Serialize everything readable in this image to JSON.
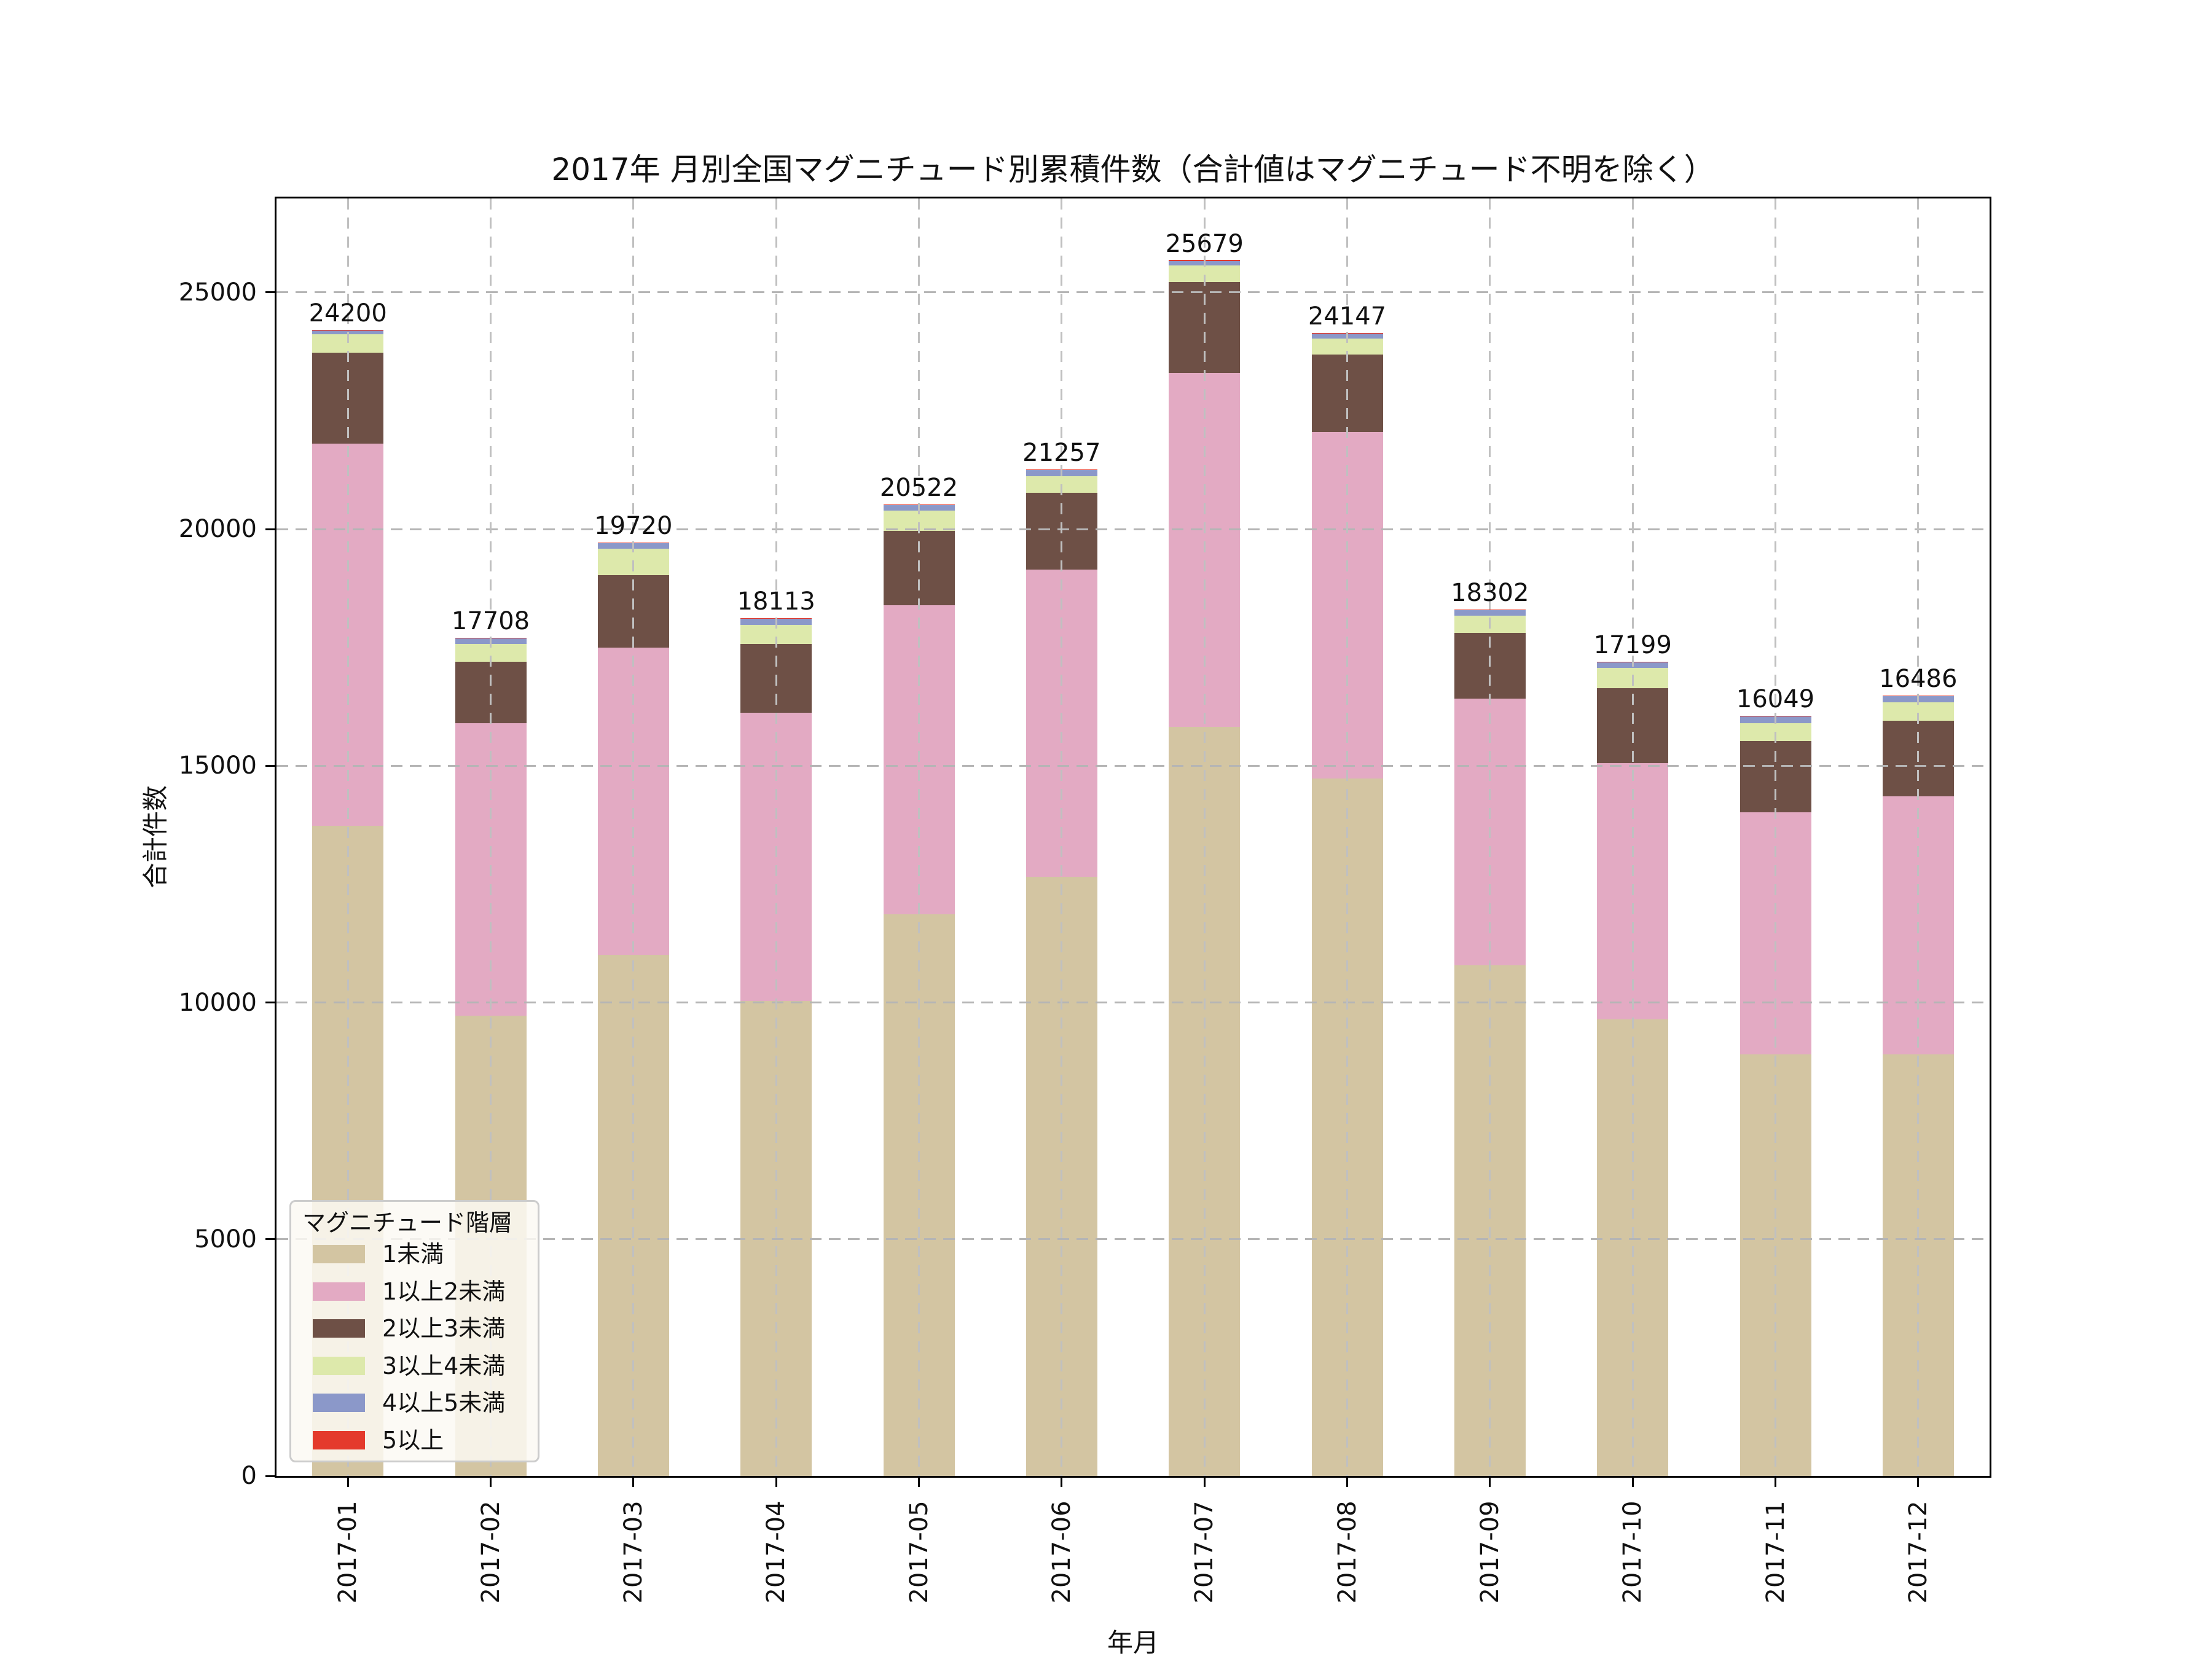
{
  "chart_data": {
    "type": "bar",
    "stacked": true,
    "title": "2017年 月別全国マグニチュード別累積件数（合計値はマグニチュード不明を除く）",
    "xlabel": "年月",
    "ylabel": "合計件数",
    "categories": [
      "2017-01",
      "2017-02",
      "2017-03",
      "2017-04",
      "2017-05",
      "2017-06",
      "2017-07",
      "2017-08",
      "2017-09",
      "2017-10",
      "2017-11",
      "2017-12"
    ],
    "series": [
      {
        "name": "1未満",
        "color": "#d3c5a2",
        "values": [
          13730,
          9720,
          11000,
          10030,
          11860,
          12660,
          15820,
          14730,
          10790,
          9640,
          8900,
          8900
        ]
      },
      {
        "name": "1以上2未満",
        "color": "#e3aac3",
        "values": [
          8070,
          6180,
          6490,
          6090,
          6530,
          6480,
          7475,
          7320,
          5630,
          5410,
          5120,
          5460
        ]
      },
      {
        "name": "2以上3未満",
        "color": "#6e5046",
        "values": [
          1925,
          1300,
          1540,
          1450,
          1570,
          1620,
          1925,
          1640,
          1390,
          1585,
          1505,
          1590
        ]
      },
      {
        "name": "3以上4未満",
        "color": "#dde9ab",
        "values": [
          385,
          370,
          550,
          400,
          430,
          360,
          350,
          330,
          360,
          430,
          380,
          390
        ]
      },
      {
        "name": "4以上5未満",
        "color": "#8b98c9",
        "values": [
          80,
          130,
          130,
          135,
          124,
          128,
          85,
          115,
          124,
          126,
          137,
          137
        ]
      },
      {
        "name": "5以上",
        "color": "#e43a2c",
        "values": [
          10,
          8,
          10,
          8,
          8,
          9,
          24,
          12,
          8,
          8,
          7,
          9
        ]
      }
    ],
    "totals": [
      24200,
      17708,
      19720,
      18113,
      20522,
      21257,
      25679,
      24147,
      18302,
      17199,
      16049,
      16486
    ],
    "yticks": [
      0,
      5000,
      10000,
      15000,
      20000,
      25000
    ],
    "ylim": [
      0,
      26983
    ],
    "grid": true,
    "grid_color": "#b5b5b5",
    "legend": {
      "title": "マグニチュード階層",
      "position": "lower-left"
    },
    "text_color": "#111111",
    "background": "#ffffff"
  }
}
